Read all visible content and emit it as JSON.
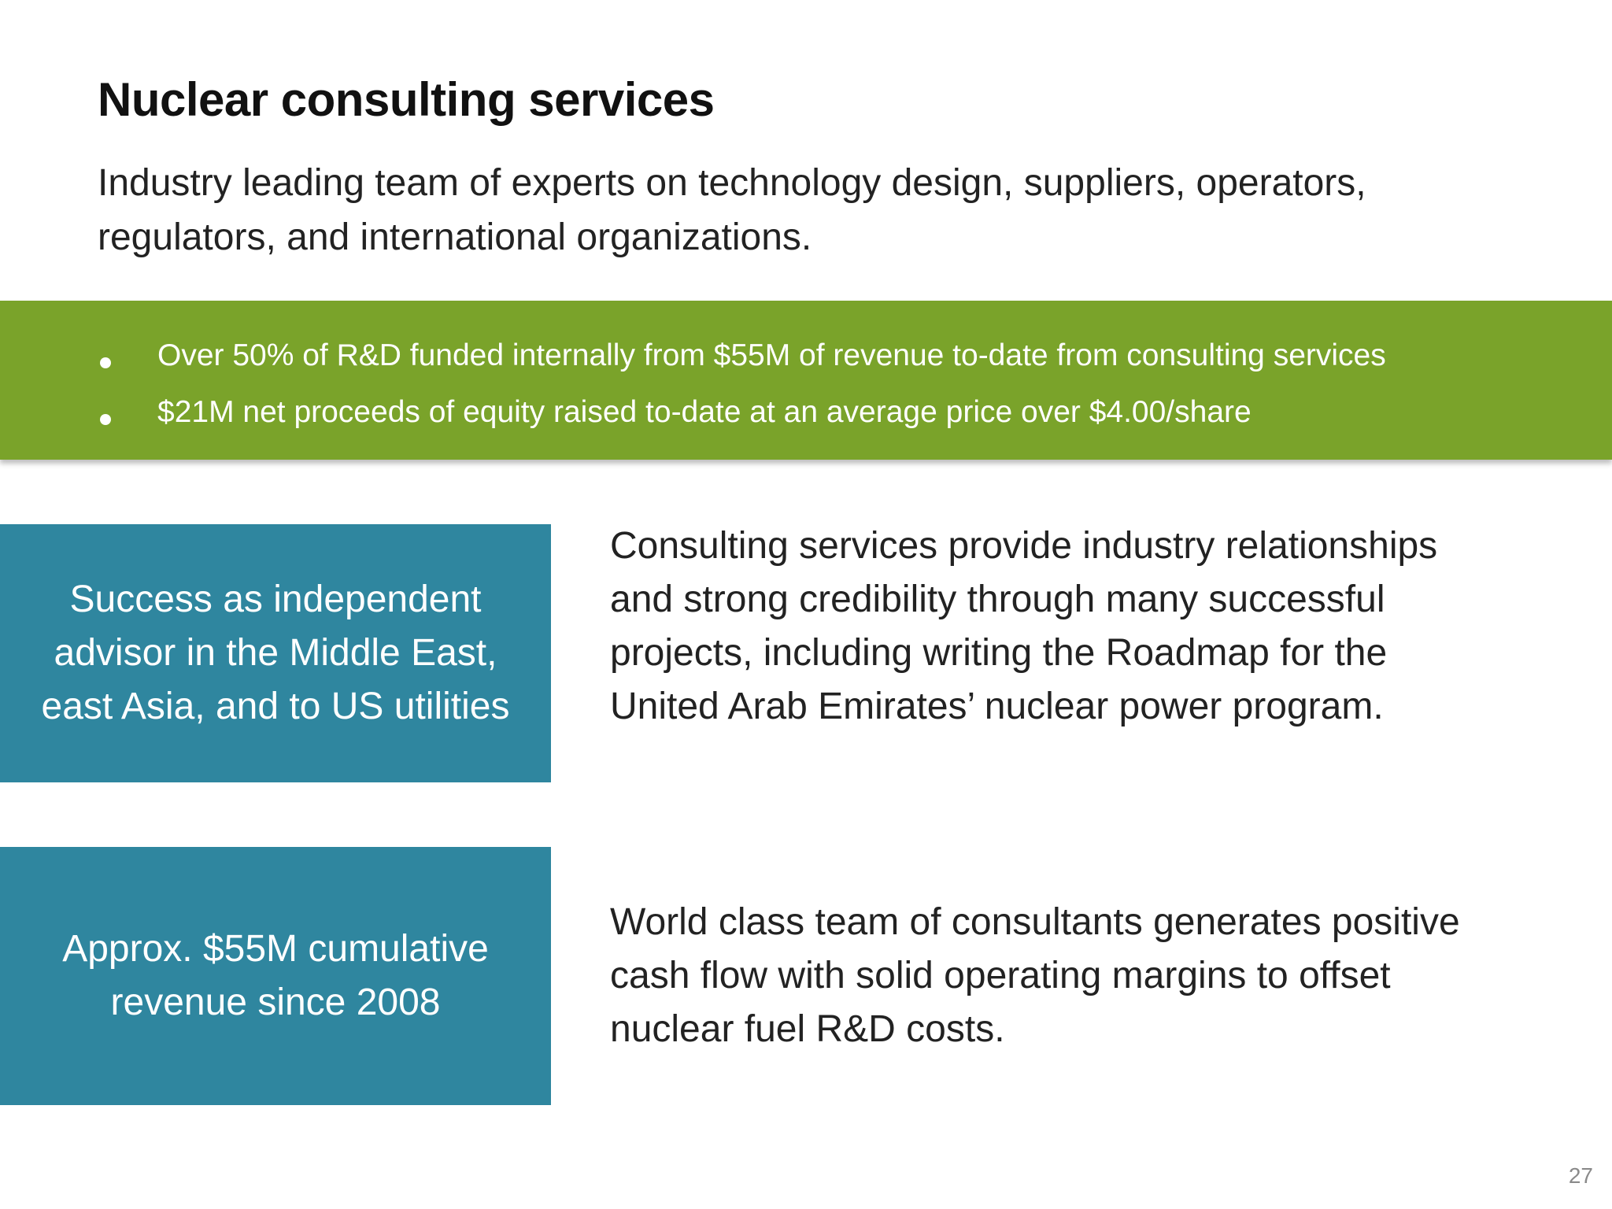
{
  "slide": {
    "title": "Nuclear consulting services",
    "subtitle": "Industry leading team of experts on technology design, suppliers, operators, regulators, and international organizations.",
    "highlights": [
      "Over 50% of R&D funded internally from $55M of revenue to-date from consulting services",
      "$21M net proceeds of equity raised to-date at an average price over $4.00/share"
    ],
    "callouts": [
      {
        "box_text": "Success as independent advisor in the Middle East, east Asia, and to US utilities",
        "description": "Consulting services provide industry relationships and strong credibility through many successful projects, including writing the Roadmap for the United Arab Emirates’ nuclear power program."
      },
      {
        "box_text": "Approx. $55M cumulative revenue since 2008",
        "description": "World class team of consultants generates positive cash flow with solid operating margins to offset nuclear fuel R&D costs."
      }
    ],
    "page_number": "27"
  },
  "colors": {
    "band_green": "#7aa32a",
    "box_blue": "#2f869f"
  }
}
